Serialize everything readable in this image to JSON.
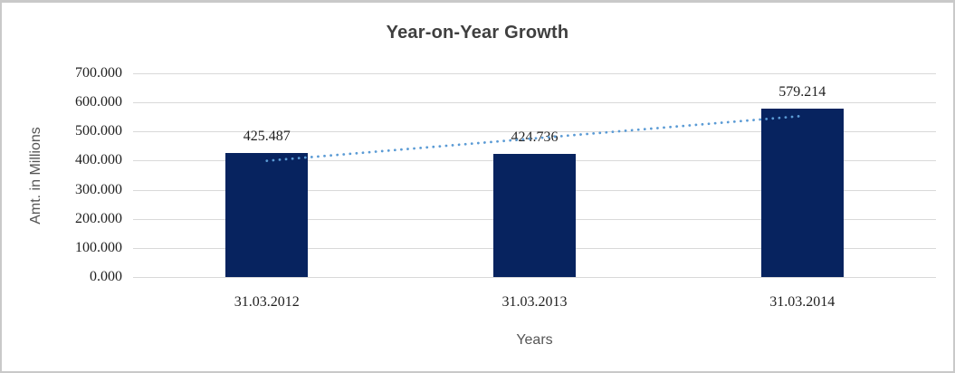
{
  "frame": {
    "background": "#ffffff",
    "border_color": "#c9c9c9"
  },
  "chart_data": {
    "type": "bar",
    "title": "Year-on-Year Growth",
    "categories": [
      "31.03.2012",
      "31.03.2013",
      "31.03.2014"
    ],
    "values": [
      425.487,
      424.736,
      579.214
    ],
    "value_labels": [
      "425.487",
      "424.736",
      "579.214"
    ],
    "xlabel": "Years",
    "ylabel": "Amt. in Millions",
    "ylim": [
      0,
      700
    ],
    "ytick_step": 100,
    "ytick_labels": [
      "0.000",
      "100.000",
      "200.000",
      "300.000",
      "400.000",
      "500.000",
      "600.000",
      "700.000"
    ],
    "grid": true,
    "legend": "none",
    "colors": {
      "bar": "#07235f",
      "gridline": "#d9d9d9",
      "title": "#3f3f3f",
      "tick_text": "#1f1f1f",
      "axis_title_text": "#555555",
      "trendline": "#5b9bd5"
    },
    "trendline": {
      "type": "linear",
      "style": "dotted"
    }
  }
}
